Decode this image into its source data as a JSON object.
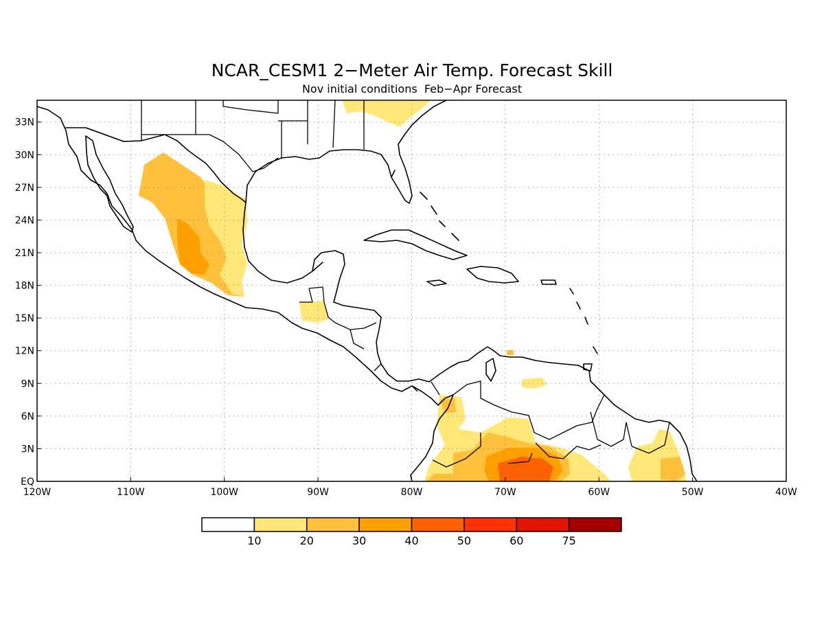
{
  "title": "NCAR_CESM1 2−Meter Air Temp. Forecast Skill",
  "subtitle": "Nov initial conditions  Feb−Apr Forecast",
  "map": {
    "lon_range": [
      -120,
      -40
    ],
    "lat_range": [
      0,
      35
    ],
    "lon_ticks": [
      {
        "value": -120,
        "label": "120W"
      },
      {
        "value": -110,
        "label": "110W"
      },
      {
        "value": -100,
        "label": "100W"
      },
      {
        "value": -90,
        "label": "90W"
      },
      {
        "value": -80,
        "label": "80W"
      },
      {
        "value": -70,
        "label": "70W"
      },
      {
        "value": -60,
        "label": "60W"
      },
      {
        "value": -50,
        "label": "50W"
      },
      {
        "value": -40,
        "label": "40W"
      }
    ],
    "lat_ticks": [
      {
        "value": 0,
        "label": "EQ"
      },
      {
        "value": 3,
        "label": "3N"
      },
      {
        "value": 6,
        "label": "6N"
      },
      {
        "value": 9,
        "label": "9N"
      },
      {
        "value": 12,
        "label": "12N"
      },
      {
        "value": 15,
        "label": "15N"
      },
      {
        "value": 18,
        "label": "18N"
      },
      {
        "value": 21,
        "label": "21N"
      },
      {
        "value": 24,
        "label": "24N"
      },
      {
        "value": 27,
        "label": "27N"
      },
      {
        "value": 30,
        "label": "30N"
      },
      {
        "value": 33,
        "label": "33N"
      }
    ],
    "grid": "dotted",
    "land_outline_color": "#000000",
    "ocean_color": "#ffffff"
  },
  "colorbar": {
    "thresholds": [
      "10",
      "20",
      "30",
      "40",
      "50",
      "60",
      "75"
    ],
    "colors": [
      "#ffffff",
      "#ffe878",
      "#ffc03c",
      "#ffa000",
      "#ff6000",
      "#ff3200",
      "#e11400",
      "#a50000"
    ]
  },
  "skill_regions": [
    {
      "region": "northwest-mexico",
      "level": 2,
      "color": "#ffc03c"
    },
    {
      "region": "central-mexico",
      "level": 3,
      "color": "#ffa000"
    },
    {
      "region": "southern-us",
      "level": 1,
      "color": "#ffe878"
    },
    {
      "region": "guatemala",
      "level": 1,
      "color": "#ffe878"
    },
    {
      "region": "venezuela-small",
      "level": 1,
      "color": "#ffe878"
    },
    {
      "region": "colombia",
      "level": 1,
      "color": "#ffe878"
    },
    {
      "region": "colombia-core",
      "level": 2,
      "color": "#ffc03c"
    },
    {
      "region": "amazon-north",
      "level": 1,
      "color": "#ffe878"
    },
    {
      "region": "amazon-mid",
      "level": 2,
      "color": "#ffc03c"
    },
    {
      "region": "amazon-core",
      "level": 3,
      "color": "#ffa000"
    },
    {
      "region": "amazon-peak",
      "level": 4,
      "color": "#ff6000"
    },
    {
      "region": "guiana-east",
      "level": 1,
      "color": "#ffe878"
    },
    {
      "region": "amapa-core",
      "level": 2,
      "color": "#ffc03c"
    }
  ]
}
